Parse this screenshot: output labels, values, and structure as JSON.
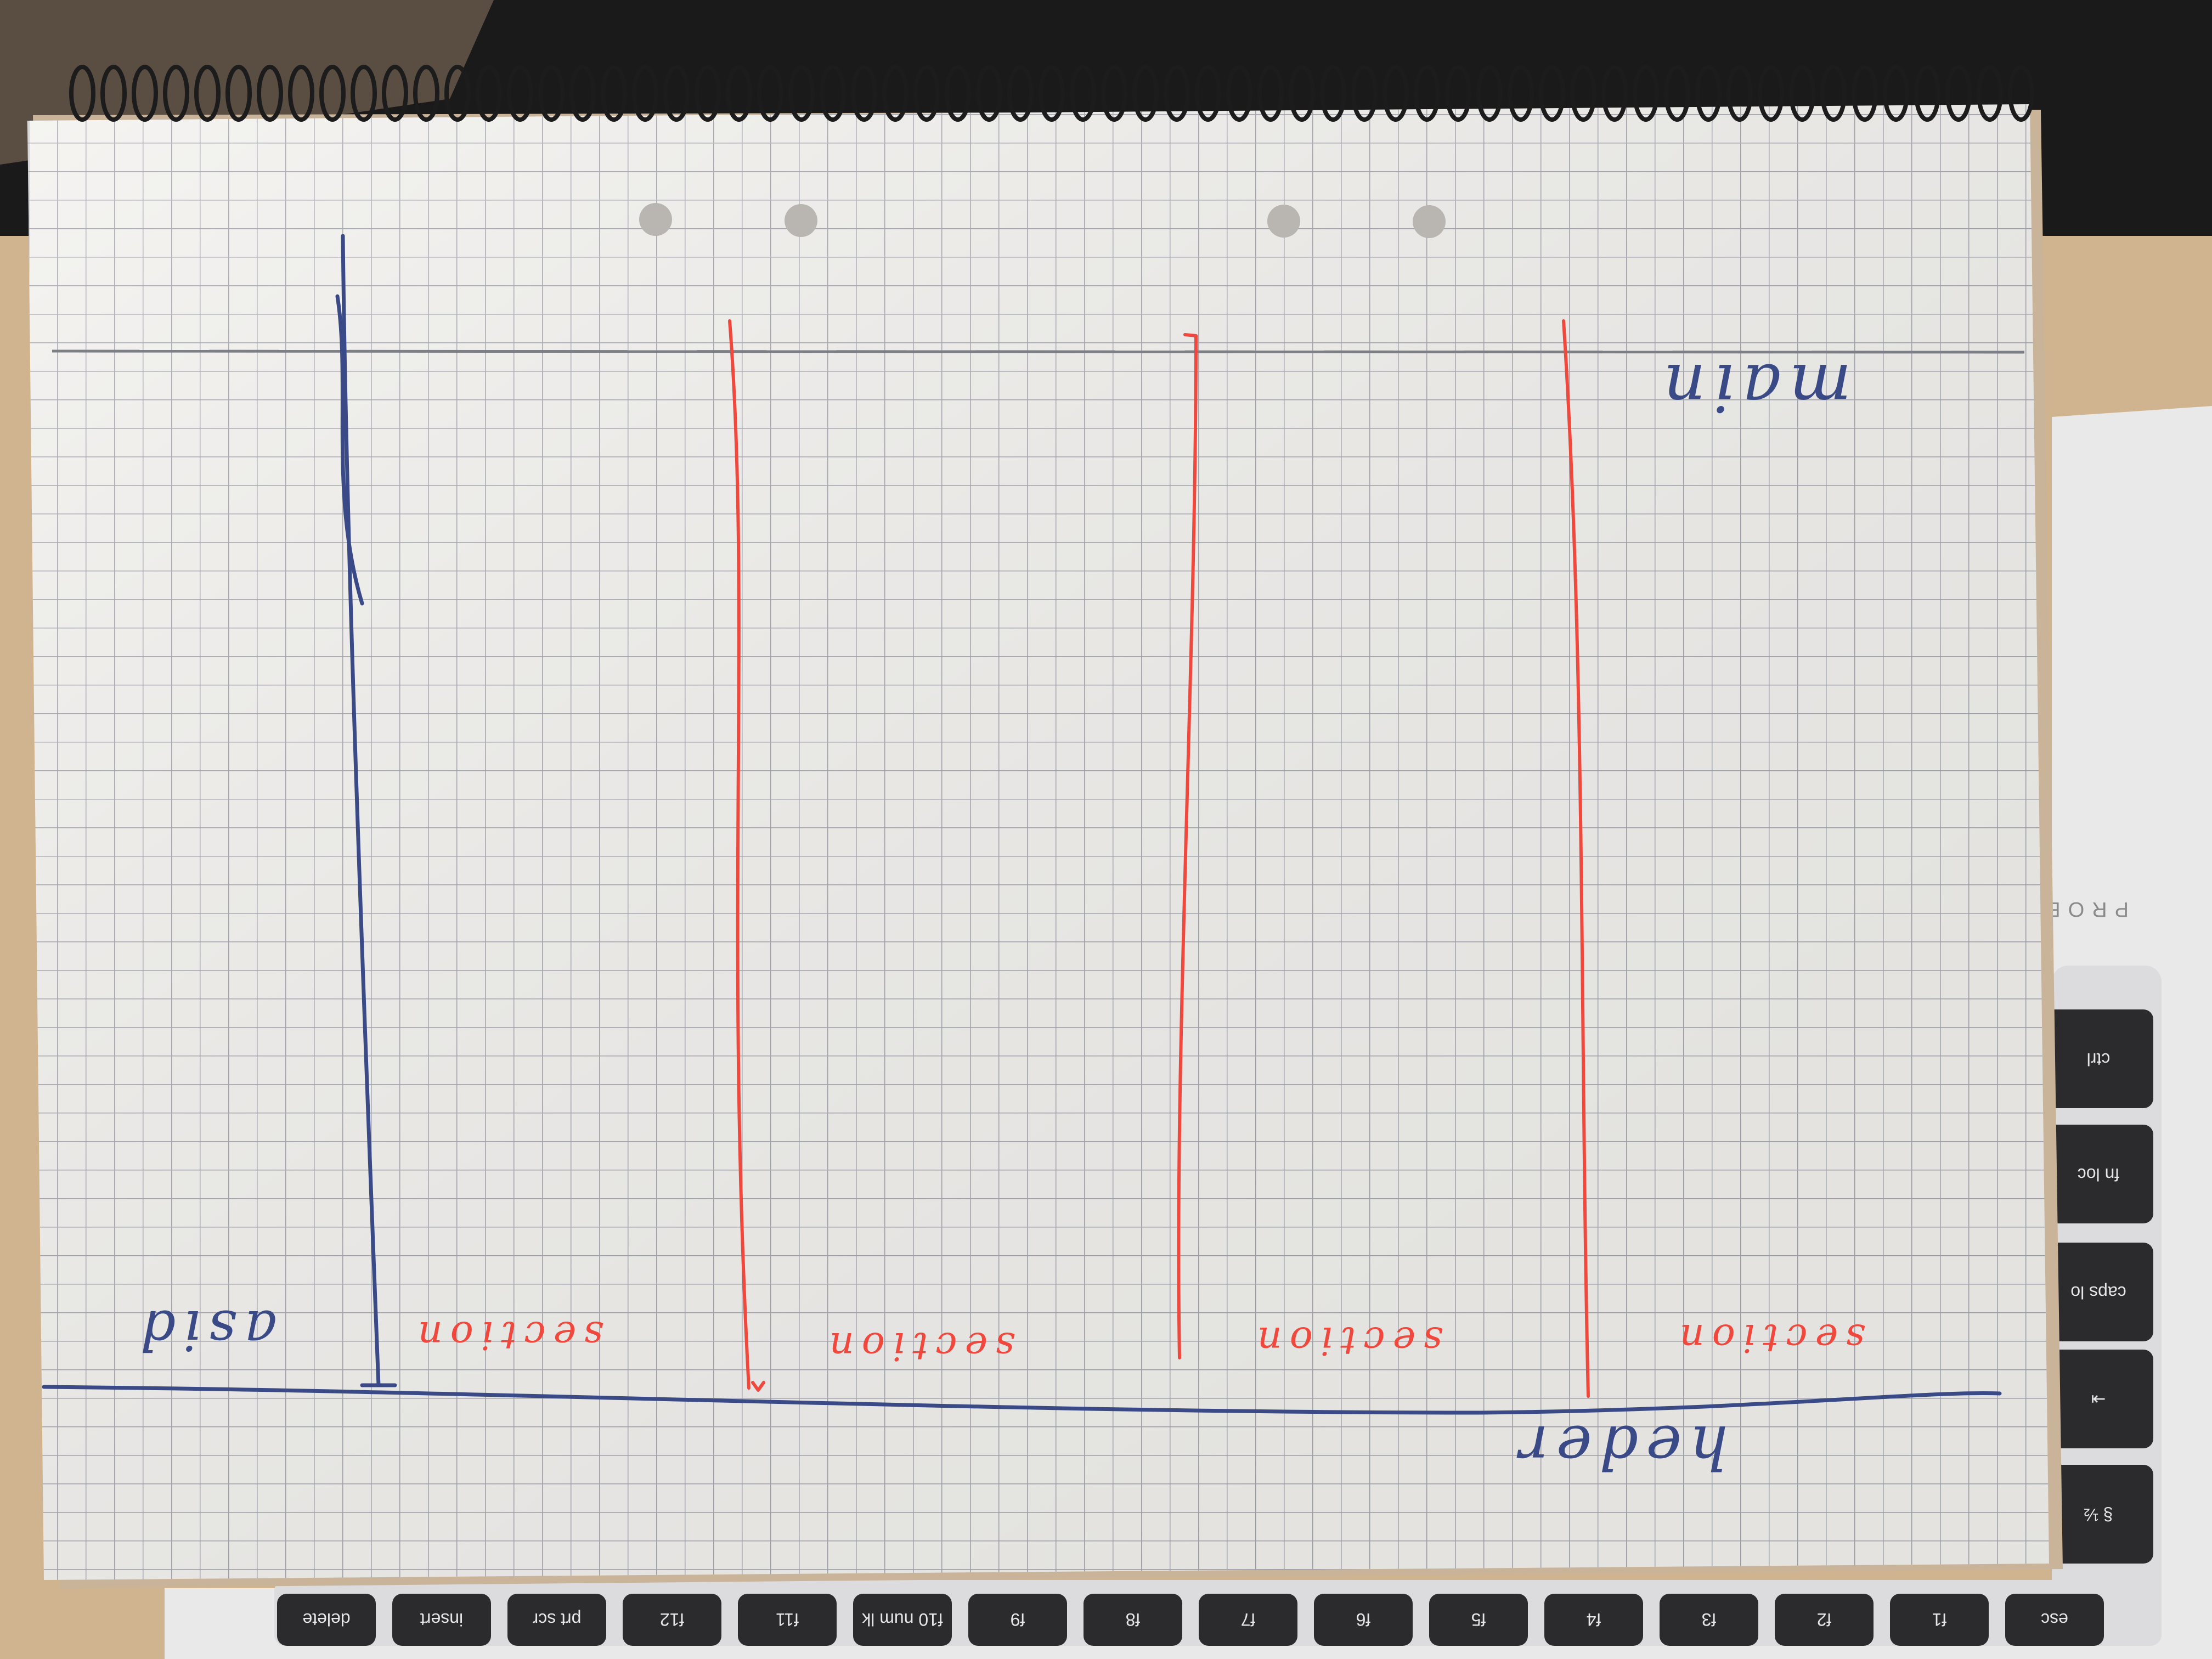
{
  "notebook": {
    "sketch_labels": {
      "main": "main",
      "header": "heder",
      "aside": "asid",
      "sections": [
        "section",
        "section",
        "section",
        "section"
      ]
    }
  },
  "laptop": {
    "brand_text": "PROB",
    "side_keys": [
      "ctrl",
      "fn loc",
      "caps lo",
      "⇥",
      "§ ½"
    ],
    "function_keys": [
      "esc",
      "f1",
      "f2",
      "f3",
      "f4",
      "f5",
      "f6",
      "f7",
      "f8",
      "f9",
      "f10 num lk",
      "f11",
      "f12",
      "prt scr",
      "insert",
      "delete"
    ]
  },
  "colors": {
    "paper": "#f3f2ef",
    "grid": "#9b9ea6",
    "blue_ink": "#3a4a86",
    "red_ink": "#f0483c",
    "desk": "#cfb48f",
    "laptop_body": "#e9e9ea",
    "key": "#2b2b2d"
  }
}
